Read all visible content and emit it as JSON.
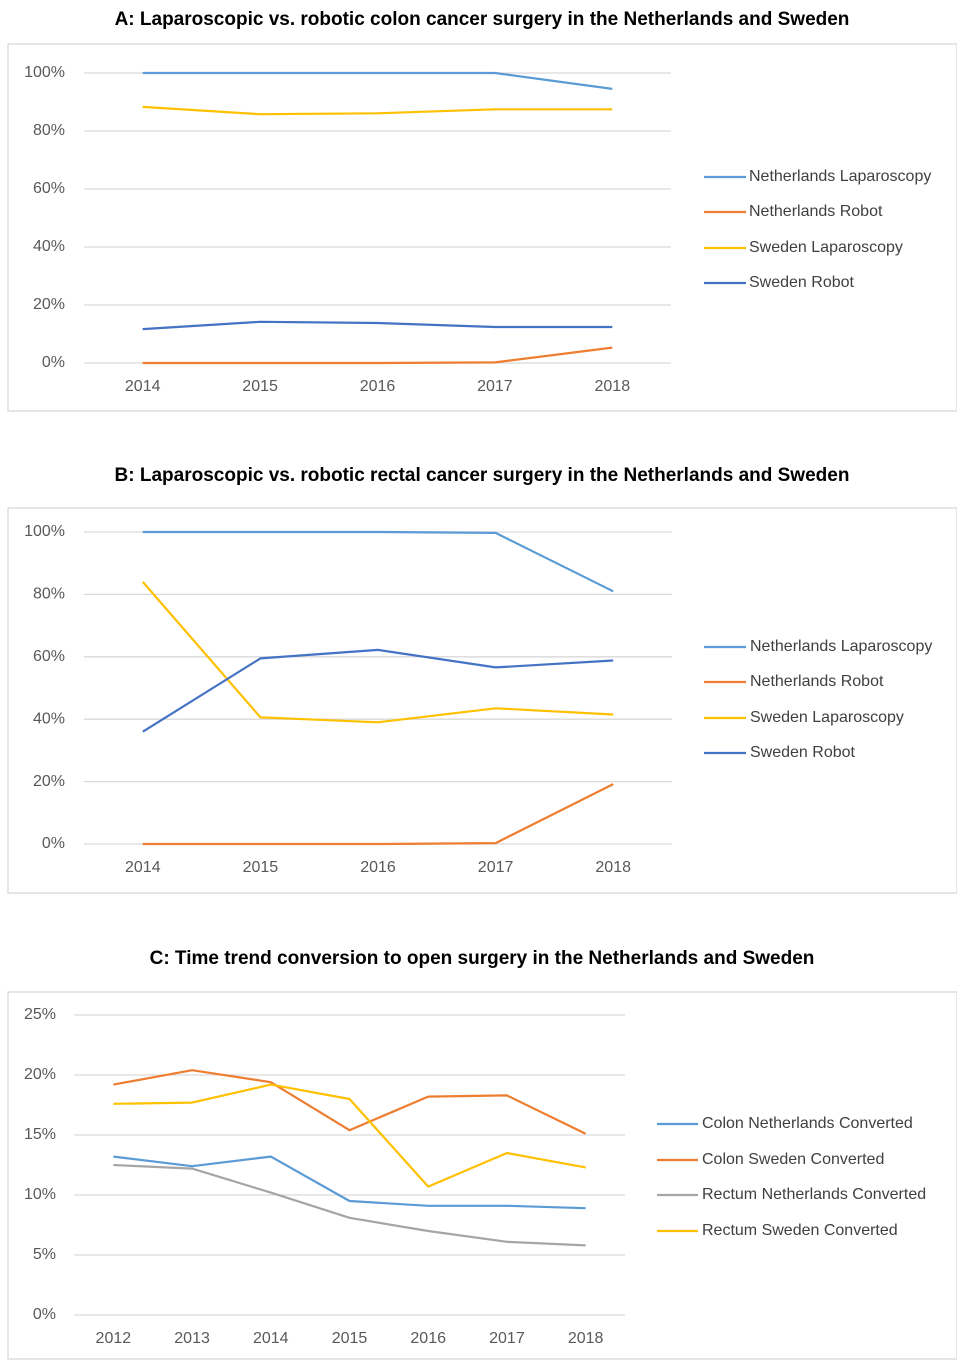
{
  "chart_data": [
    {
      "type": "line",
      "title": "A: Laparoscopic vs. robotic colon cancer surgery in the Netherlands and Sweden",
      "categories": [
        "2014",
        "2015",
        "2016",
        "2017",
        "2018"
      ],
      "ylim": [
        0,
        100
      ],
      "yticks": [
        {
          "value": 0,
          "label": "0%"
        },
        {
          "value": 20,
          "label": "20%"
        },
        {
          "value": 40,
          "label": "40%"
        },
        {
          "value": 60,
          "label": "60%"
        },
        {
          "value": 80,
          "label": "80%"
        },
        {
          "value": 100,
          "label": "100%"
        }
      ],
      "grid": true,
      "legend": "right",
      "series": [
        {
          "name": "Netherlands Laparoscopy",
          "color": "#5b9bd5",
          "values": [
            100,
            100,
            100,
            100,
            94.5
          ]
        },
        {
          "name": "Netherlands Robot",
          "color": "#ed7d31",
          "values": [
            0,
            0,
            0,
            0.2,
            5.3
          ]
        },
        {
          "name": "Sweden Laparoscopy",
          "color": "#ffc000",
          "values": [
            88.3,
            85.8,
            86.1,
            87.5,
            87.5
          ]
        },
        {
          "name": "Sweden Robot",
          "color": "#4472c4",
          "values": [
            11.7,
            14.2,
            13.8,
            12.4,
            12.4
          ]
        }
      ]
    },
    {
      "type": "line",
      "title": "B: Laparoscopic vs. robotic rectal cancer surgery in the Netherlands and Sweden",
      "categories": [
        "2014",
        "2015",
        "2016",
        "2017",
        "2018"
      ],
      "ylim": [
        0,
        100
      ],
      "yticks": [
        {
          "value": 0,
          "label": "0%"
        },
        {
          "value": 20,
          "label": "20%"
        },
        {
          "value": 40,
          "label": "40%"
        },
        {
          "value": 60,
          "label": "60%"
        },
        {
          "value": 80,
          "label": "80%"
        },
        {
          "value": 100,
          "label": "100%"
        }
      ],
      "grid": true,
      "legend": "right",
      "series": [
        {
          "name": "Netherlands Laparoscopy",
          "color": "#5b9bd5",
          "values": [
            100,
            100,
            100,
            99.7,
            81
          ]
        },
        {
          "name": "Netherlands Robot",
          "color": "#ed7d31",
          "values": [
            0,
            0,
            0,
            0.3,
            19.2
          ]
        },
        {
          "name": "Sweden Laparoscopy",
          "color": "#ffc000",
          "values": [
            84,
            40.6,
            39,
            43.5,
            41.5
          ]
        },
        {
          "name": "Sweden Robot",
          "color": "#4472c4",
          "values": [
            36,
            59.5,
            62.2,
            56.6,
            58.8
          ]
        }
      ]
    },
    {
      "type": "line",
      "title": "C: Time trend conversion to open surgery in the Netherlands and Sweden",
      "categories": [
        "2012",
        "2013",
        "2014",
        "2015",
        "2016",
        "2017",
        "2018"
      ],
      "ylim": [
        0,
        25
      ],
      "yticks": [
        {
          "value": 0,
          "label": "0%"
        },
        {
          "value": 5,
          "label": "5%"
        },
        {
          "value": 10,
          "label": "10%"
        },
        {
          "value": 15,
          "label": "15%"
        },
        {
          "value": 20,
          "label": "20%"
        },
        {
          "value": 25,
          "label": "25%"
        }
      ],
      "grid": true,
      "legend": "right",
      "series": [
        {
          "name": "Colon Netherlands Converted",
          "color": "#5b9bd5",
          "values": [
            13.2,
            12.4,
            13.2,
            9.5,
            9.1,
            9.1,
            8.9
          ]
        },
        {
          "name": "Colon Sweden Converted",
          "color": "#ed7d31",
          "values": [
            19.2,
            20.4,
            19.4,
            15.4,
            18.2,
            18.3,
            15.1
          ]
        },
        {
          "name": "Rectum Netherlands Converted",
          "color": "#a5a5a5",
          "values": [
            12.5,
            12.2,
            10.2,
            8.1,
            7,
            6.1,
            5.8
          ]
        },
        {
          "name": "Rectum Sweden Converted",
          "color": "#ffc000",
          "values": [
            17.6,
            17.7,
            19.2,
            18,
            10.7,
            13.5,
            12.3
          ]
        }
      ]
    }
  ]
}
